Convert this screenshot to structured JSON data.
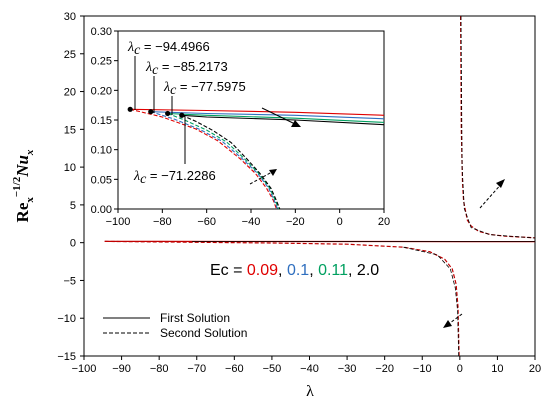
{
  "chart_data": {
    "type": "line",
    "xlabel": "λ",
    "ylabel": "Re_x^{-1/2} Nu_x",
    "xlim": [
      -100,
      20
    ],
    "ylim": [
      -15,
      30
    ],
    "xticks": [
      -100,
      -90,
      -80,
      -70,
      -60,
      -50,
      -40,
      -30,
      -20,
      -10,
      0,
      10,
      20
    ],
    "yticks": [
      -15,
      -10,
      -5,
      0,
      5,
      10,
      15,
      20,
      25,
      30
    ],
    "series": [
      {
        "name": "First Solution",
        "style": "solid",
        "color": "#c00000",
        "x": [
          -94.4966,
          -80,
          -60,
          -40,
          -20,
          0,
          20
        ],
        "y": [
          0.17,
          0.165,
          0.16,
          0.155,
          0.15,
          0.145,
          0.14
        ]
      },
      {
        "name": "Second Solution",
        "style": "dashed",
        "color": "#c00000",
        "x": [
          0.2,
          0.4,
          0.7,
          1,
          2,
          3,
          5,
          8,
          12,
          16,
          20
        ],
        "y": [
          30,
          15,
          8,
          5.5,
          3,
          2.2,
          1.5,
          1.1,
          0.85,
          0.75,
          0.65
        ]
      },
      {
        "name": "Second Solution",
        "style": "dashed",
        "color": "#c00000",
        "x": [
          -94.4966,
          -70,
          -50,
          -30,
          -15,
          -8,
          -4,
          -2,
          -1,
          -0.5,
          -0.2
        ],
        "y": [
          0.17,
          0.05,
          -0.05,
          -0.2,
          -0.6,
          -1.2,
          -2.2,
          -3.5,
          -5.5,
          -8.5,
          -15
        ]
      }
    ],
    "annotations": {
      "ec_prefix": "Ec = ",
      "ec_values": [
        {
          "text": "0.09",
          "color": "#e00000"
        },
        {
          "text": "0.1",
          "color": "#2f6fbf"
        },
        {
          "text": "0.11",
          "color": "#00a060"
        },
        {
          "text": "2.0",
          "color": "#000000"
        }
      ],
      "separator": ", ",
      "legend": [
        {
          "text": "First Solution",
          "style": "solid"
        },
        {
          "text": "Second Solution",
          "style": "dashed"
        }
      ]
    },
    "inset": {
      "xlim": [
        -100,
        20
      ],
      "ylim": [
        0,
        0.3
      ],
      "xticks": [
        -100,
        -80,
        -60,
        -40,
        -20,
        0,
        20
      ],
      "yticks": [
        0.0,
        0.05,
        0.1,
        0.15,
        0.2,
        0.25,
        0.3
      ],
      "ytick_labels": [
        "0.00",
        "0.05",
        "0.10",
        "0.15",
        "0.20",
        "0.25",
        "0.30"
      ],
      "critical_points": [
        {
          "label": "λ",
          "sub": "c",
          "value_text": " = −94.4966",
          "x": -94.4966,
          "y": 0.168
        },
        {
          "label": "λ",
          "sub": "c",
          "value_text": " = −85.2173",
          "x": -85.2173,
          "y": 0.164
        },
        {
          "label": "λ",
          "sub": "c",
          "value_text": " = −77.5975",
          "x": -77.5975,
          "y": 0.161
        },
        {
          "label": "λ",
          "sub": "c",
          "value_text": " = −71.2286",
          "x": -71.2286,
          "y": 0.158
        }
      ],
      "first_solutions": [
        {
          "color": "#e00000",
          "x": [
            -94.4966,
            -60,
            -20,
            20
          ],
          "y": [
            0.168,
            0.166,
            0.163,
            0.158
          ]
        },
        {
          "color": "#2f6fbf",
          "x": [
            -85.2173,
            -60,
            -20,
            20
          ],
          "y": [
            0.164,
            0.161,
            0.158,
            0.152
          ]
        },
        {
          "color": "#00a060",
          "x": [
            -77.5975,
            -60,
            -20,
            20
          ],
          "y": [
            0.161,
            0.158,
            0.153,
            0.146
          ]
        },
        {
          "color": "#000000",
          "x": [
            -71.2286,
            -60,
            -20,
            20
          ],
          "y": [
            0.158,
            0.155,
            0.15,
            0.142
          ]
        }
      ],
      "second_solutions": [
        {
          "color": "#e00000",
          "x": [
            -94.4966,
            -80,
            -65,
            -55,
            -45,
            -38,
            -33,
            -30,
            -28.5
          ],
          "y": [
            0.168,
            0.155,
            0.135,
            0.115,
            0.085,
            0.06,
            0.035,
            0.015,
            0.0
          ]
        },
        {
          "color": "#2f6fbf",
          "x": [
            -85.2173,
            -75,
            -63,
            -53,
            -44,
            -37,
            -32,
            -29.5,
            -28.0
          ],
          "y": [
            0.164,
            0.152,
            0.134,
            0.114,
            0.085,
            0.06,
            0.035,
            0.014,
            0.0
          ]
        },
        {
          "color": "#00a060",
          "x": [
            -77.5975,
            -70,
            -60,
            -51,
            -43,
            -36.5,
            -31.5,
            -29,
            -27.5
          ],
          "y": [
            0.161,
            0.15,
            0.133,
            0.113,
            0.085,
            0.06,
            0.035,
            0.014,
            0.0
          ]
        },
        {
          "color": "#000000",
          "x": [
            -71.2286,
            -65,
            -57,
            -49,
            -42,
            -36,
            -31,
            -28.5,
            -27.0
          ],
          "y": [
            0.158,
            0.148,
            0.132,
            0.112,
            0.085,
            0.06,
            0.035,
            0.014,
            0.0
          ]
        }
      ]
    }
  }
}
